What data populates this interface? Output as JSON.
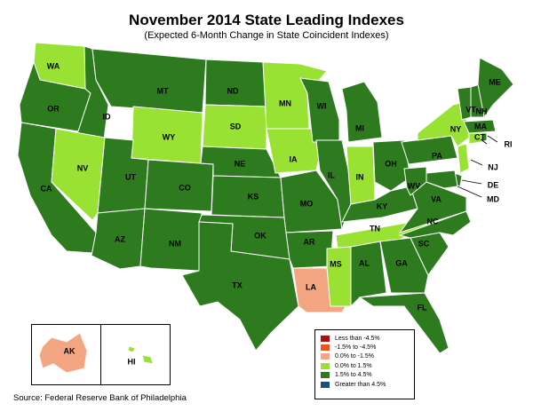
{
  "title": "November 2014 State Leading Indexes",
  "subtitle": "(Expected 6-Month Change in State Coincident Indexes)",
  "source": "Source: Federal Reserve Bank of Philadelphia",
  "colors": {
    "dark_red": "#a50f15",
    "orange_red": "#e8561e",
    "salmon": "#f4a582",
    "light_green": "#99e233",
    "dark_green": "#2e7b1f",
    "navy": "#1f4e79",
    "border": "#ffffff"
  },
  "legend": [
    {
      "label": "Less than -4.5%",
      "color": "#a50f15"
    },
    {
      "label": "-1.5% to -4.5%",
      "color": "#e8561e"
    },
    {
      "label": "0.0% to -1.5%",
      "color": "#f4a582"
    },
    {
      "label": "0.0% to  1.5%",
      "color": "#99e233"
    },
    {
      "label": "1.5% to  4.5%",
      "color": "#2e7b1f"
    },
    {
      "label": "Greater than 4.5%",
      "color": "#1f4e79"
    }
  ],
  "states": [
    {
      "abbr": "WA",
      "category": "0.0% to  1.5%"
    },
    {
      "abbr": "OR",
      "category": "1.5% to  4.5%"
    },
    {
      "abbr": "CA",
      "category": "1.5% to  4.5%"
    },
    {
      "abbr": "ID",
      "category": "1.5% to  4.5%"
    },
    {
      "abbr": "NV",
      "category": "0.0% to  1.5%"
    },
    {
      "abbr": "MT",
      "category": "1.5% to  4.5%"
    },
    {
      "abbr": "WY",
      "category": "0.0% to  1.5%"
    },
    {
      "abbr": "UT",
      "category": "1.5% to  4.5%"
    },
    {
      "abbr": "AZ",
      "category": "1.5% to  4.5%"
    },
    {
      "abbr": "CO",
      "category": "1.5% to  4.5%"
    },
    {
      "abbr": "NM",
      "category": "1.5% to  4.5%"
    },
    {
      "abbr": "ND",
      "category": "1.5% to  4.5%"
    },
    {
      "abbr": "SD",
      "category": "0.0% to  1.5%"
    },
    {
      "abbr": "NE",
      "category": "1.5% to  4.5%"
    },
    {
      "abbr": "KS",
      "category": "1.5% to  4.5%"
    },
    {
      "abbr": "OK",
      "category": "1.5% to  4.5%"
    },
    {
      "abbr": "TX",
      "category": "1.5% to  4.5%"
    },
    {
      "abbr": "MN",
      "category": "0.0% to  1.5%"
    },
    {
      "abbr": "IA",
      "category": "0.0% to  1.5%"
    },
    {
      "abbr": "MO",
      "category": "1.5% to  4.5%"
    },
    {
      "abbr": "AR",
      "category": "1.5% to  4.5%"
    },
    {
      "abbr": "LA",
      "category": "0.0% to -1.5%"
    },
    {
      "abbr": "WI",
      "category": "1.5% to  4.5%"
    },
    {
      "abbr": "IL",
      "category": "1.5% to  4.5%"
    },
    {
      "abbr": "MI",
      "category": "1.5% to  4.5%"
    },
    {
      "abbr": "IN",
      "category": "0.0% to  1.5%"
    },
    {
      "abbr": "OH",
      "category": "1.5% to  4.5%"
    },
    {
      "abbr": "KY",
      "category": "1.5% to  4.5%"
    },
    {
      "abbr": "TN",
      "category": "0.0% to  1.5%"
    },
    {
      "abbr": "MS",
      "category": "0.0% to  1.5%"
    },
    {
      "abbr": "AL",
      "category": "1.5% to  4.5%"
    },
    {
      "abbr": "GA",
      "category": "1.5% to  4.5%"
    },
    {
      "abbr": "FL",
      "category": "1.5% to  4.5%"
    },
    {
      "abbr": "SC",
      "category": "1.5% to  4.5%"
    },
    {
      "abbr": "NC",
      "category": "1.5% to  4.5%"
    },
    {
      "abbr": "VA",
      "category": "1.5% to  4.5%"
    },
    {
      "abbr": "WV",
      "category": "1.5% to  4.5%"
    },
    {
      "abbr": "PA",
      "category": "1.5% to  4.5%"
    },
    {
      "abbr": "NY",
      "category": "0.0% to  1.5%"
    },
    {
      "abbr": "NJ",
      "category": "0.0% to  1.5%"
    },
    {
      "abbr": "DE",
      "category": "1.5% to  4.5%"
    },
    {
      "abbr": "MD",
      "category": "1.5% to  4.5%"
    },
    {
      "abbr": "CT",
      "category": "0.0% to  1.5%"
    },
    {
      "abbr": "RI",
      "category": "1.5% to  4.5%"
    },
    {
      "abbr": "MA",
      "category": "1.5% to  4.5%"
    },
    {
      "abbr": "VT",
      "category": "1.5% to  4.5%"
    },
    {
      "abbr": "NH",
      "category": "1.5% to  4.5%"
    },
    {
      "abbr": "ME",
      "category": "1.5% to  4.5%"
    },
    {
      "abbr": "AK",
      "category": "0.0% to -1.5%"
    },
    {
      "abbr": "HI",
      "category": "0.0% to  1.5%"
    }
  ]
}
